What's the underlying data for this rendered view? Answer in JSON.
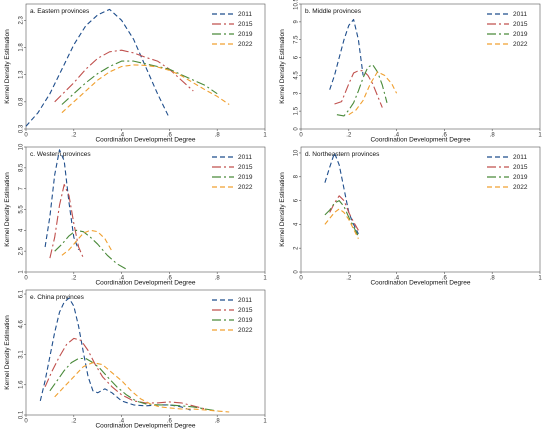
{
  "chart_data": [
    {
      "type": "line",
      "title": "a. Eastern provinces",
      "xlabel": "Coordination Development Degree",
      "ylabel": "Kernel Density Estimation",
      "xlim": [
        0,
        1
      ],
      "ylim": [
        0.3,
        2.6
      ],
      "xticks": [
        "0",
        ".2",
        ".4",
        ".6",
        ".8",
        "1"
      ],
      "yticks": [
        "0.3",
        "0.8",
        "1.3",
        "1.8",
        "2.3"
      ],
      "legend_position": "top-right",
      "grid": false,
      "series": [
        {
          "name": "2011",
          "color": "#1f4e8c",
          "dash": "5,3",
          "x": [
            0.0,
            0.05,
            0.1,
            0.15,
            0.2,
            0.25,
            0.3,
            0.35,
            0.4,
            0.45,
            0.5,
            0.55,
            0.6
          ],
          "y": [
            0.35,
            0.6,
            0.95,
            1.4,
            1.85,
            2.2,
            2.4,
            2.5,
            2.3,
            1.95,
            1.45,
            0.95,
            0.5
          ]
        },
        {
          "name": "2015",
          "color": "#c0504d",
          "dash": "9,3,2,3",
          "x": [
            0.12,
            0.2,
            0.25,
            0.3,
            0.35,
            0.4,
            0.45,
            0.5,
            0.55,
            0.6,
            0.65,
            0.7
          ],
          "y": [
            0.8,
            1.15,
            1.4,
            1.6,
            1.72,
            1.75,
            1.7,
            1.62,
            1.55,
            1.4,
            1.2,
            1.0
          ]
        },
        {
          "name": "2019",
          "color": "#4a8a3a",
          "dash": "9,3,2,3",
          "x": [
            0.15,
            0.2,
            0.25,
            0.3,
            0.35,
            0.4,
            0.45,
            0.5,
            0.55,
            0.6,
            0.65,
            0.7,
            0.75,
            0.8
          ],
          "y": [
            0.75,
            0.95,
            1.15,
            1.32,
            1.45,
            1.55,
            1.55,
            1.5,
            1.45,
            1.4,
            1.3,
            1.2,
            1.1,
            0.95
          ]
        },
        {
          "name": "2022",
          "color": "#f0a030",
          "dash": "5,3",
          "x": [
            0.15,
            0.2,
            0.25,
            0.3,
            0.35,
            0.4,
            0.45,
            0.5,
            0.55,
            0.6,
            0.65,
            0.7,
            0.75,
            0.8,
            0.85
          ],
          "y": [
            0.6,
            0.8,
            1.0,
            1.2,
            1.35,
            1.45,
            1.48,
            1.47,
            1.44,
            1.38,
            1.28,
            1.15,
            1.02,
            0.9,
            0.75
          ]
        }
      ]
    },
    {
      "type": "line",
      "title": "b. Middle provinces",
      "xlabel": "Coordination Development Degree",
      "ylabel": "Kernel Density Estimation",
      "xlim": [
        0,
        1
      ],
      "ylim": [
        0,
        10.5
      ],
      "xticks": [
        "0",
        ".2",
        ".4",
        ".6",
        ".8",
        "1"
      ],
      "yticks": [
        "0",
        "1.5",
        "3",
        "4.5",
        "6",
        "7.5",
        "9",
        "10.5"
      ],
      "legend_position": "top-right",
      "grid": false,
      "series": [
        {
          "name": "2011",
          "color": "#1f4e8c",
          "dash": "5,3",
          "x": [
            0.12,
            0.14,
            0.16,
            0.18,
            0.2,
            0.22,
            0.24,
            0.26
          ],
          "y": [
            3.3,
            4.5,
            6.0,
            7.5,
            8.7,
            9.2,
            7.5,
            4.5
          ]
        },
        {
          "name": "2015",
          "color": "#c0504d",
          "dash": "9,3,2,3",
          "x": [
            0.14,
            0.17,
            0.2,
            0.22,
            0.24,
            0.26,
            0.28,
            0.3,
            0.32,
            0.34
          ],
          "y": [
            2.1,
            2.3,
            3.8,
            4.7,
            4.9,
            4.9,
            4.5,
            3.8,
            2.8,
            1.8
          ]
        },
        {
          "name": "2019",
          "color": "#4a8a3a",
          "dash": "9,3,2,3",
          "x": [
            0.15,
            0.18,
            0.2,
            0.22,
            0.24,
            0.26,
            0.28,
            0.3,
            0.32,
            0.34,
            0.36
          ],
          "y": [
            1.2,
            1.1,
            1.6,
            2.2,
            3.2,
            4.3,
            5.2,
            5.4,
            4.8,
            3.7,
            2.2
          ]
        },
        {
          "name": "2022",
          "color": "#f0a030",
          "dash": "5,3",
          "x": [
            0.2,
            0.23,
            0.26,
            0.29,
            0.32,
            0.35,
            0.38,
            0.4
          ],
          "y": [
            1.2,
            1.6,
            2.4,
            3.8,
            4.8,
            4.5,
            3.8,
            3.0
          ]
        }
      ]
    },
    {
      "type": "line",
      "title": "c. Western provinces",
      "xlabel": "Coordination Development Degree",
      "ylabel": "Kernel Density Estimation",
      "xlim": [
        0,
        1
      ],
      "ylim": [
        1,
        10
      ],
      "xticks": [
        "0",
        ".2",
        ".4",
        ".6",
        ".8",
        "1"
      ],
      "yticks": [
        "1",
        "2.5",
        "4",
        "5.5",
        "7",
        "8.5",
        "10"
      ],
      "legend_position": "top-right",
      "grid": false,
      "series": [
        {
          "name": "2011",
          "color": "#1f4e8c",
          "dash": "5,3",
          "x": [
            0.08,
            0.1,
            0.12,
            0.14,
            0.16,
            0.18,
            0.2,
            0.22
          ],
          "y": [
            2.8,
            5.0,
            8.0,
            9.8,
            9.0,
            6.0,
            3.5,
            2.6
          ]
        },
        {
          "name": "2015",
          "color": "#c0504d",
          "dash": "9,3,2,3",
          "x": [
            0.1,
            0.12,
            0.14,
            0.16,
            0.18,
            0.2,
            0.22,
            0.24
          ],
          "y": [
            2.0,
            3.5,
            5.8,
            7.3,
            6.5,
            4.5,
            2.8,
            2.0
          ]
        },
        {
          "name": "2019",
          "color": "#4a8a3a",
          "dash": "9,3,2,3",
          "x": [
            0.12,
            0.15,
            0.18,
            0.21,
            0.24,
            0.27,
            0.3,
            0.34,
            0.38,
            0.42
          ],
          "y": [
            2.5,
            3.0,
            3.6,
            4.0,
            3.9,
            3.5,
            3.0,
            2.2,
            1.6,
            1.2
          ]
        },
        {
          "name": "2022",
          "color": "#f0a030",
          "dash": "5,3",
          "x": [
            0.15,
            0.18,
            0.21,
            0.24,
            0.27,
            0.3,
            0.33,
            0.36
          ],
          "y": [
            2.2,
            2.6,
            3.2,
            3.8,
            4.0,
            3.9,
            3.4,
            2.5
          ]
        }
      ]
    },
    {
      "type": "line",
      "title": "d. Northeastern provinces",
      "xlabel": "Coordination Development Degree",
      "ylabel": "Kernel Density Estimation",
      "xlim": [
        0,
        1
      ],
      "ylim": [
        0,
        10.5
      ],
      "xticks": [
        "0",
        ".2",
        ".4",
        ".6",
        ".8",
        "1"
      ],
      "yticks": [
        "0",
        "2",
        "4",
        "6",
        "8",
        "10"
      ],
      "legend_position": "top-right",
      "grid": false,
      "series": [
        {
          "name": "2011",
          "color": "#1f4e8c",
          "dash": "5,3",
          "x": [
            0.1,
            0.12,
            0.14,
            0.16,
            0.18,
            0.2,
            0.22,
            0.24
          ],
          "y": [
            7.5,
            8.8,
            10.0,
            9.0,
            7.0,
            5.0,
            4.0,
            3.2
          ]
        },
        {
          "name": "2015",
          "color": "#c0504d",
          "dash": "9,3,2,3",
          "x": [
            0.12,
            0.14,
            0.16,
            0.18,
            0.2,
            0.22,
            0.24
          ],
          "y": [
            5.0,
            5.8,
            6.4,
            6.0,
            5.0,
            4.2,
            3.5
          ]
        },
        {
          "name": "2019",
          "color": "#4a8a3a",
          "dash": "9,3,2,3",
          "x": [
            0.1,
            0.12,
            0.14,
            0.16,
            0.18,
            0.2,
            0.22,
            0.24
          ],
          "y": [
            4.8,
            5.2,
            5.8,
            6.0,
            5.5,
            4.6,
            3.8,
            3.0
          ]
        },
        {
          "name": "2022",
          "color": "#f0a030",
          "dash": "5,3",
          "x": [
            0.1,
            0.12,
            0.14,
            0.16,
            0.18,
            0.2,
            0.22,
            0.24
          ],
          "y": [
            4.0,
            4.5,
            5.0,
            5.3,
            5.0,
            4.4,
            3.6,
            2.8
          ]
        }
      ]
    },
    {
      "type": "line",
      "title": "e. China provinces",
      "xlabel": "Coordination Development Degree",
      "ylabel": "Kernel Density Estimation",
      "xlim": [
        0,
        1
      ],
      "ylim": [
        0.1,
        6.3
      ],
      "xticks": [
        "0",
        ".2",
        ".4",
        ".6",
        ".8",
        "1"
      ],
      "yticks": [
        "0.1",
        "1.6",
        "3.1",
        "4.6",
        "6.1"
      ],
      "legend_position": "top-right",
      "grid": false,
      "series": [
        {
          "name": "2011",
          "color": "#1f4e8c",
          "dash": "5,3",
          "x": [
            0.06,
            0.08,
            0.1,
            0.12,
            0.14,
            0.16,
            0.18,
            0.2,
            0.22,
            0.24,
            0.26,
            0.28,
            0.3,
            0.33,
            0.36,
            0.4,
            0.45,
            0.5,
            0.55,
            0.6,
            0.65,
            0.7
          ],
          "y": [
            0.8,
            1.8,
            3.0,
            4.2,
            5.2,
            5.7,
            5.9,
            5.5,
            4.5,
            3.2,
            2.0,
            1.3,
            1.2,
            1.4,
            1.2,
            0.8,
            0.6,
            0.55,
            0.6,
            0.6,
            0.5,
            0.3
          ]
        },
        {
          "name": "2015",
          "color": "#c0504d",
          "dash": "9,3,2,3",
          "x": [
            0.08,
            0.11,
            0.14,
            0.17,
            0.2,
            0.23,
            0.26,
            0.29,
            0.32,
            0.36,
            0.4,
            0.45,
            0.5,
            0.55,
            0.6,
            0.65,
            0.7,
            0.75
          ],
          "y": [
            1.5,
            2.3,
            3.0,
            3.6,
            3.9,
            3.8,
            3.3,
            2.6,
            2.0,
            1.5,
            1.1,
            0.8,
            0.7,
            0.7,
            0.75,
            0.7,
            0.55,
            0.4
          ]
        },
        {
          "name": "2019",
          "color": "#4a8a3a",
          "dash": "9,3,2,3",
          "x": [
            0.1,
            0.13,
            0.16,
            0.19,
            0.22,
            0.25,
            0.28,
            0.31,
            0.34,
            0.38,
            0.42,
            0.46,
            0.5,
            0.55,
            0.6,
            0.65,
            0.7,
            0.75,
            0.8
          ],
          "y": [
            1.3,
            1.8,
            2.3,
            2.7,
            2.9,
            2.9,
            2.7,
            2.4,
            2.0,
            1.5,
            1.1,
            0.8,
            0.65,
            0.6,
            0.6,
            0.55,
            0.5,
            0.4,
            0.3
          ]
        },
        {
          "name": "2022",
          "color": "#f0a030",
          "dash": "5,3",
          "x": [
            0.12,
            0.16,
            0.2,
            0.24,
            0.28,
            0.32,
            0.36,
            0.4,
            0.44,
            0.48,
            0.52,
            0.56,
            0.6,
            0.65,
            0.7,
            0.75,
            0.8,
            0.85
          ],
          "y": [
            1.0,
            1.5,
            2.0,
            2.5,
            2.7,
            2.6,
            2.2,
            1.8,
            1.3,
            0.9,
            0.65,
            0.5,
            0.45,
            0.4,
            0.4,
            0.35,
            0.3,
            0.25
          ]
        }
      ]
    }
  ]
}
